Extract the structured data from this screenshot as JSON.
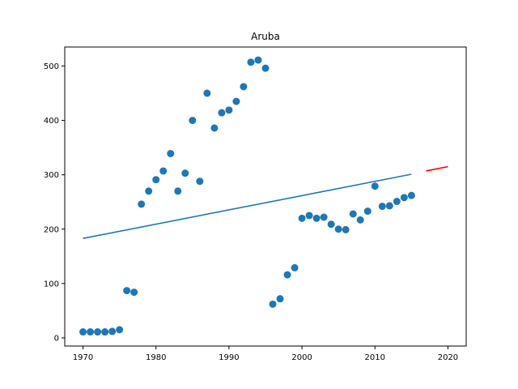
{
  "chart_data": {
    "type": "scatter",
    "title": "Aruba",
    "xlabel": "",
    "ylabel": "",
    "xlim": [
      1967.5,
      2022.5
    ],
    "ylim": [
      -15,
      535
    ],
    "xticks": [
      1970,
      1980,
      1990,
      2000,
      2010,
      2020
    ],
    "yticks": [
      0,
      100,
      200,
      300,
      400,
      500
    ],
    "grid": false,
    "legend": "none",
    "colors": {
      "points": "#1f77b4",
      "fit": "#1f77b4",
      "forecast": "#ff0000"
    },
    "series": [
      {
        "type": "scatter",
        "points": [
          [
            1970,
            11
          ],
          [
            1971,
            11
          ],
          [
            1972,
            11
          ],
          [
            1973,
            11
          ],
          [
            1974,
            12
          ],
          [
            1975,
            15
          ],
          [
            1976,
            87
          ],
          [
            1977,
            84
          ],
          [
            1978,
            246
          ],
          [
            1979,
            270
          ],
          [
            1980,
            291
          ],
          [
            1981,
            307
          ],
          [
            1982,
            339
          ],
          [
            1983,
            270
          ],
          [
            1984,
            303
          ],
          [
            1985,
            400
          ],
          [
            1986,
            288
          ],
          [
            1987,
            450
          ],
          [
            1988,
            386
          ],
          [
            1989,
            414
          ],
          [
            1990,
            419
          ],
          [
            1991,
            435
          ],
          [
            1992,
            462
          ],
          [
            1993,
            507
          ],
          [
            1994,
            511
          ],
          [
            1995,
            496
          ],
          [
            1996,
            62
          ],
          [
            1997,
            72
          ],
          [
            1998,
            116
          ],
          [
            1999,
            129
          ],
          [
            2000,
            220
          ],
          [
            2001,
            225
          ],
          [
            2002,
            220
          ],
          [
            2003,
            222
          ],
          [
            2004,
            209
          ],
          [
            2005,
            200
          ],
          [
            2006,
            199
          ],
          [
            2007,
            228
          ],
          [
            2008,
            217
          ],
          [
            2009,
            233
          ],
          [
            2010,
            279
          ],
          [
            2011,
            242
          ],
          [
            2012,
            243
          ],
          [
            2013,
            251
          ],
          [
            2014,
            258
          ],
          [
            2015,
            262
          ]
        ]
      },
      {
        "type": "line",
        "points": [
          [
            1970,
            183
          ],
          [
            2015,
            301
          ]
        ]
      },
      {
        "type": "line",
        "points": [
          [
            2017,
            307
          ],
          [
            2020,
            315
          ]
        ]
      }
    ]
  }
}
